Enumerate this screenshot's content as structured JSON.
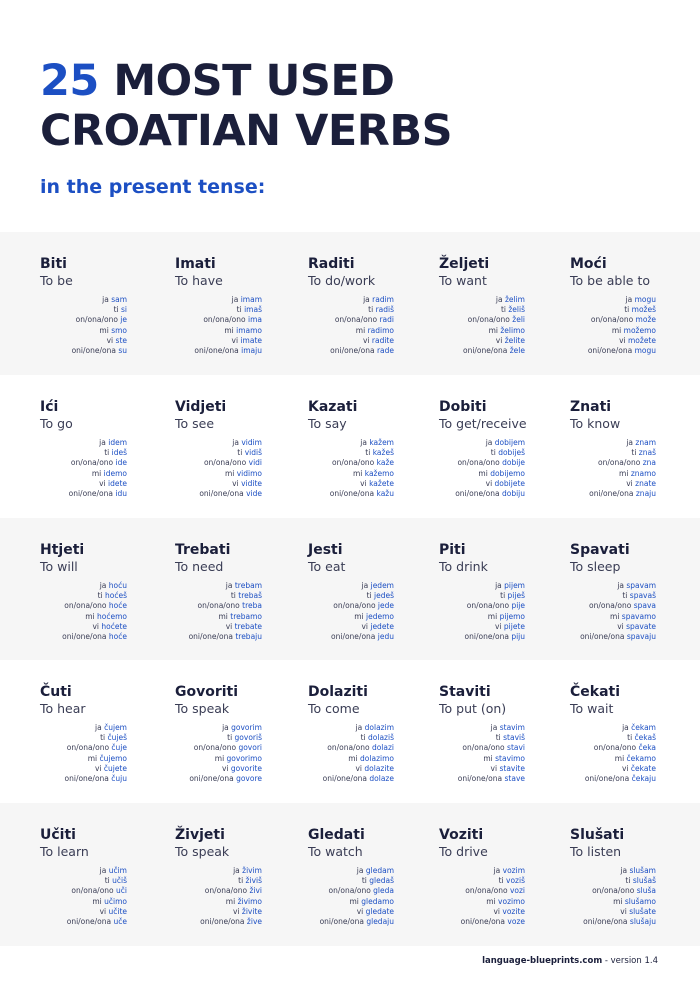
{
  "title": {
    "number": "25",
    "line1_rest": "MOST USED",
    "line2": "CROATIAN VERBS"
  },
  "subtitle": "in the present tense:",
  "rows": [
    [
      {
        "verb": "Biti",
        "meaning": "To be",
        "forms": [
          [
            "ja",
            "sam"
          ],
          [
            "ti",
            "si"
          ],
          [
            "on/ona/ono",
            "je"
          ],
          [
            "mi",
            "smo"
          ],
          [
            "vi",
            "ste"
          ],
          [
            "oni/one/ona",
            "su"
          ]
        ]
      },
      {
        "verb": "Imati",
        "meaning": "To have",
        "forms": [
          [
            "ja",
            "imam"
          ],
          [
            "ti",
            "imaš"
          ],
          [
            "on/ona/ono",
            "ima"
          ],
          [
            "mi",
            "imamo"
          ],
          [
            "vi",
            "imate"
          ],
          [
            "oni/one/ona",
            "imaju"
          ]
        ]
      },
      {
        "verb": "Raditi",
        "meaning": "To do/work",
        "forms": [
          [
            "ja",
            "radim"
          ],
          [
            "ti",
            "radiš"
          ],
          [
            "on/ona/ono",
            "radi"
          ],
          [
            "mi",
            "radimo"
          ],
          [
            "vi",
            "radite"
          ],
          [
            "oni/one/ona",
            "rade"
          ]
        ]
      },
      {
        "verb": "Željeti",
        "meaning": "To want",
        "forms": [
          [
            "ja",
            "želim"
          ],
          [
            "ti",
            "želiš"
          ],
          [
            "on/ona/ono",
            "želi"
          ],
          [
            "mi",
            "želimo"
          ],
          [
            "vi",
            "želite"
          ],
          [
            "oni/one/ona",
            "žele"
          ]
        ]
      },
      {
        "verb": "Moći",
        "meaning": "To be able to",
        "forms": [
          [
            "ja",
            "mogu"
          ],
          [
            "ti",
            "možeš"
          ],
          [
            "on/ona/ono",
            "može"
          ],
          [
            "mi",
            "možemo"
          ],
          [
            "vi",
            "možete"
          ],
          [
            "oni/one/ona",
            "mogu"
          ]
        ]
      }
    ],
    [
      {
        "verb": "Ići",
        "meaning": "To go",
        "forms": [
          [
            "ja",
            "idem"
          ],
          [
            "ti",
            "ideš"
          ],
          [
            "on/ona/ono",
            "ide"
          ],
          [
            "mi",
            "idemo"
          ],
          [
            "vi",
            "idete"
          ],
          [
            "oni/one/ona",
            "idu"
          ]
        ]
      },
      {
        "verb": "Vidjeti",
        "meaning": "To see",
        "forms": [
          [
            "ja",
            "vidim"
          ],
          [
            "ti",
            "vidiš"
          ],
          [
            "on/ona/ono",
            "vidi"
          ],
          [
            "mi",
            "vidimo"
          ],
          [
            "vi",
            "vidite"
          ],
          [
            "oni/one/ona",
            "vide"
          ]
        ]
      },
      {
        "verb": "Kazati",
        "meaning": "To say",
        "forms": [
          [
            "ja",
            "kažem"
          ],
          [
            "ti",
            "kažeš"
          ],
          [
            "on/ona/ono",
            "kaže"
          ],
          [
            "mi",
            "kažemo"
          ],
          [
            "vi",
            "kažete"
          ],
          [
            "oni/one/ona",
            "kažu"
          ]
        ]
      },
      {
        "verb": "Dobiti",
        "meaning": "To get/receive",
        "forms": [
          [
            "ja",
            "dobijem"
          ],
          [
            "ti",
            "dobiješ"
          ],
          [
            "on/ona/ono",
            "dobije"
          ],
          [
            "mi",
            "dobijemo"
          ],
          [
            "vi",
            "dobijete"
          ],
          [
            "oni/one/ona",
            "dobiju"
          ]
        ]
      },
      {
        "verb": "Znati",
        "meaning": "To know",
        "forms": [
          [
            "ja",
            "znam"
          ],
          [
            "ti",
            "znaš"
          ],
          [
            "on/ona/ono",
            "zna"
          ],
          [
            "mi",
            "znamo"
          ],
          [
            "vi",
            "znate"
          ],
          [
            "oni/one/ona",
            "znaju"
          ]
        ]
      }
    ],
    [
      {
        "verb": "Htjeti",
        "meaning": "To will",
        "forms": [
          [
            "ja",
            "hoću"
          ],
          [
            "ti",
            "hoćeš"
          ],
          [
            "on/ona/ono",
            "hoće"
          ],
          [
            "mi",
            "hoćemo"
          ],
          [
            "vi",
            "hoćete"
          ],
          [
            "oni/one/ona",
            "hoće"
          ]
        ]
      },
      {
        "verb": "Trebati",
        "meaning": "To need",
        "forms": [
          [
            "ja",
            "trebam"
          ],
          [
            "ti",
            "trebaš"
          ],
          [
            "on/ona/ono",
            "treba"
          ],
          [
            "mi",
            "trebamo"
          ],
          [
            "vi",
            "trebate"
          ],
          [
            "oni/one/ona",
            "trebaju"
          ]
        ]
      },
      {
        "verb": "Jesti",
        "meaning": "To eat",
        "forms": [
          [
            "ja",
            "jedem"
          ],
          [
            "ti",
            "jedeš"
          ],
          [
            "on/ona/ono",
            "jede"
          ],
          [
            "mi",
            "jedemo"
          ],
          [
            "vi",
            "jedete"
          ],
          [
            "oni/one/ona",
            "jedu"
          ]
        ]
      },
      {
        "verb": "Piti",
        "meaning": "To drink",
        "forms": [
          [
            "ja",
            "pijem"
          ],
          [
            "ti",
            "piješ"
          ],
          [
            "on/ona/ono",
            "pije"
          ],
          [
            "mi",
            "pijemo"
          ],
          [
            "vi",
            "pijete"
          ],
          [
            "oni/one/ona",
            "piju"
          ]
        ]
      },
      {
        "verb": "Spavati",
        "meaning": "To sleep",
        "forms": [
          [
            "ja",
            "spavam"
          ],
          [
            "ti",
            "spavaš"
          ],
          [
            "on/ona/ono",
            "spava"
          ],
          [
            "mi",
            "spavamo"
          ],
          [
            "vi",
            "spavate"
          ],
          [
            "oni/one/ona",
            "spavaju"
          ]
        ]
      }
    ],
    [
      {
        "verb": "Čuti",
        "meaning": "To hear",
        "forms": [
          [
            "ja",
            "čujem"
          ],
          [
            "ti",
            "čuješ"
          ],
          [
            "on/ona/ono",
            "čuje"
          ],
          [
            "mi",
            "čujemo"
          ],
          [
            "vi",
            "čujete"
          ],
          [
            "oni/one/ona",
            "čuju"
          ]
        ]
      },
      {
        "verb": "Govoriti",
        "meaning": "To speak",
        "forms": [
          [
            "ja",
            "govorim"
          ],
          [
            "ti",
            "govoriš"
          ],
          [
            "on/ona/ono",
            "govori"
          ],
          [
            "mi",
            "govorimo"
          ],
          [
            "vi",
            "govorite"
          ],
          [
            "oni/one/ona",
            "govore"
          ]
        ]
      },
      {
        "verb": "Dolaziti",
        "meaning": "To come",
        "forms": [
          [
            "ja",
            "dolazim"
          ],
          [
            "ti",
            "dolaziš"
          ],
          [
            "on/ona/ono",
            "dolazi"
          ],
          [
            "mi",
            "dolazimo"
          ],
          [
            "vi",
            "dolazite"
          ],
          [
            "oni/one/ona",
            "dolaze"
          ]
        ]
      },
      {
        "verb": "Staviti",
        "meaning": "To put (on)",
        "forms": [
          [
            "ja",
            "stavim"
          ],
          [
            "ti",
            "staviš"
          ],
          [
            "on/ona/ono",
            "stavi"
          ],
          [
            "mi",
            "stavimo"
          ],
          [
            "vi",
            "stavite"
          ],
          [
            "oni/one/ona",
            "stave"
          ]
        ]
      },
      {
        "verb": "Čekati",
        "meaning": "To wait",
        "forms": [
          [
            "ja",
            "čekam"
          ],
          [
            "ti",
            "čekaš"
          ],
          [
            "on/ona/ono",
            "čeka"
          ],
          [
            "mi",
            "čekamo"
          ],
          [
            "vi",
            "čekate"
          ],
          [
            "oni/one/ona",
            "čekaju"
          ]
        ]
      }
    ],
    [
      {
        "verb": "Učiti",
        "meaning": "To learn",
        "forms": [
          [
            "ja",
            "učim"
          ],
          [
            "ti",
            "učiš"
          ],
          [
            "on/ona/ono",
            "uči"
          ],
          [
            "mi",
            "učimo"
          ],
          [
            "vi",
            "učite"
          ],
          [
            "oni/one/ona",
            "uče"
          ]
        ]
      },
      {
        "verb": "Živjeti",
        "meaning": "To speak",
        "forms": [
          [
            "ja",
            "živim"
          ],
          [
            "ti",
            "živiš"
          ],
          [
            "on/ona/ono",
            "živi"
          ],
          [
            "mi",
            "živimo"
          ],
          [
            "vi",
            "živite"
          ],
          [
            "oni/one/ona",
            "žive"
          ]
        ]
      },
      {
        "verb": "Gledati",
        "meaning": "To watch",
        "forms": [
          [
            "ja",
            "gledam"
          ],
          [
            "ti",
            "gledaš"
          ],
          [
            "on/ona/ono",
            "gleda"
          ],
          [
            "mi",
            "gledamo"
          ],
          [
            "vi",
            "gledate"
          ],
          [
            "oni/one/ona",
            "gledaju"
          ]
        ]
      },
      {
        "verb": "Voziti",
        "meaning": "To drive",
        "forms": [
          [
            "ja",
            "vozim"
          ],
          [
            "ti",
            "voziš"
          ],
          [
            "on/ona/ono",
            "vozi"
          ],
          [
            "mi",
            "vozimo"
          ],
          [
            "vi",
            "vozite"
          ],
          [
            "oni/one/ona",
            "voze"
          ]
        ]
      },
      {
        "verb": "Slušati",
        "meaning": "To listen",
        "forms": [
          [
            "ja",
            "slušam"
          ],
          [
            "ti",
            "slušaš"
          ],
          [
            "on/ona/ono",
            "sluša"
          ],
          [
            "mi",
            "slušamo"
          ],
          [
            "vi",
            "slušate"
          ],
          [
            "oni/one/ona",
            "slušaju"
          ]
        ]
      }
    ]
  ],
  "footer": {
    "site": "language-blueprints.com",
    "version": " - version 1.4"
  }
}
